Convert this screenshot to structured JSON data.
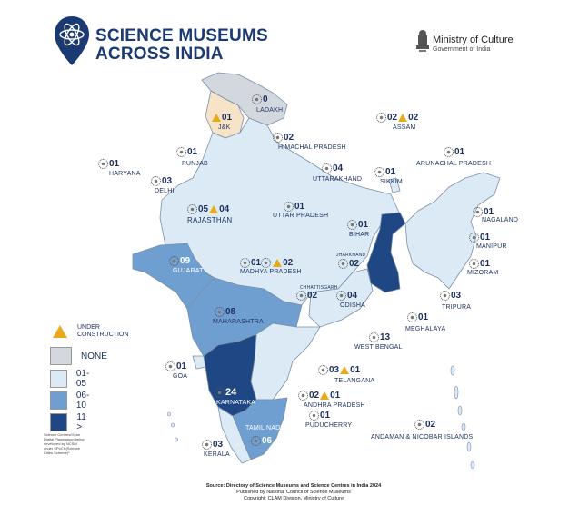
{
  "title": {
    "line1": "SCIENCE MUSEUMS",
    "line2": "ACROSS INDIA"
  },
  "ministry": {
    "name": "Ministry of Culture",
    "sub": "Government of India"
  },
  "colors": {
    "none": "#d3d8de",
    "c01_05": "#dbeaf5",
    "c06_10": "#6f9fd1",
    "c11": "#1e4784",
    "accent": "#1b3a73",
    "uc": "#e8a91f"
  },
  "legend": {
    "under_construction": "UNDER CONSTRUCTION",
    "none": "NONE",
    "r1": "01-05",
    "r2": "06-10",
    "r3": "11 >"
  },
  "footnote": "Science Centres/Gyan Digital Planetarium being developed by NCSM under SPoCS(Science Cities Scheme)*",
  "source": {
    "line1": "Source: Directory of Science Museums and Science Centres in India 2024",
    "line2": "Published by National Council of Science Museums",
    "line3": "Copyright: CLAM Division, Ministry of Culture"
  },
  "regions": {
    "ladakh": {
      "name": "LADAKH",
      "count": "0"
    },
    "jk": {
      "name": "J&K",
      "count": "01",
      "uc": true
    },
    "himachal": {
      "name": "HIMACHAL PRADESH",
      "count": "02"
    },
    "punjab": {
      "name": "PUNJAB",
      "count": "01"
    },
    "haryana": {
      "name": "HARYANA",
      "count": "01"
    },
    "delhi": {
      "name": "DELHI",
      "count": "03"
    },
    "uttarakhand": {
      "name": "UTTARAKHAND",
      "count": "04"
    },
    "rajasthan": {
      "name": "RAJASTHAN",
      "count": "05",
      "uc_count": "04"
    },
    "uttar_pradesh": {
      "name": "UTTAR PRADESH",
      "count": "01"
    },
    "bihar": {
      "name": "BIHAR",
      "count": "01"
    },
    "sikkim": {
      "name": "SIKKIM",
      "count": "01"
    },
    "assam": {
      "name": "ASSAM",
      "count": "02",
      "uc_count": "02"
    },
    "arunachal": {
      "name": "ARUNACHAL PRADESH",
      "count": "01"
    },
    "nagaland": {
      "name": "NAGALAND",
      "count": "01"
    },
    "manipur": {
      "name": "MANIPUR",
      "count": "01"
    },
    "mizoram": {
      "name": "MIZORAM",
      "count": "01"
    },
    "tripura": {
      "name": "TRIPURA",
      "count": "03"
    },
    "meghalaya": {
      "name": "MEGHALAYA",
      "count": "01"
    },
    "jharkhand": {
      "name": "JHARKHAND",
      "count": "02"
    },
    "west_bengal": {
      "name": "WEST BENGAL",
      "count": "13"
    },
    "gujarat": {
      "name": "GUJARAT",
      "count": "09"
    },
    "madhya_pradesh": {
      "name": "MADHYA PRADESH",
      "count": "01",
      "uc_count": "02"
    },
    "chhattisgarh": {
      "name": "CHHATTISGARH",
      "count": "02"
    },
    "odisha": {
      "name": "ODISHA",
      "count": "04"
    },
    "maharashtra": {
      "name": "MAHARASHTRA",
      "count": "08"
    },
    "telangana": {
      "name": "TELANGANA",
      "count": "03",
      "uc_count": "01"
    },
    "andhra_pradesh": {
      "name": "ANDHRA PRADESH",
      "count": "02",
      "uc_count": "01"
    },
    "goa": {
      "name": "GOA",
      "count": "01"
    },
    "karnataka": {
      "name": "KARNATAKA",
      "count": "24"
    },
    "tamil_nadu": {
      "name": "TAMIL NADU",
      "count": "06"
    },
    "kerala": {
      "name": "KERALA",
      "count": "03"
    },
    "puducherry": {
      "name": "PUDUCHERRY",
      "count": "01"
    },
    "andaman": {
      "name": "ANDAMAN & NICOBAR ISLANDS",
      "count": "02"
    }
  }
}
